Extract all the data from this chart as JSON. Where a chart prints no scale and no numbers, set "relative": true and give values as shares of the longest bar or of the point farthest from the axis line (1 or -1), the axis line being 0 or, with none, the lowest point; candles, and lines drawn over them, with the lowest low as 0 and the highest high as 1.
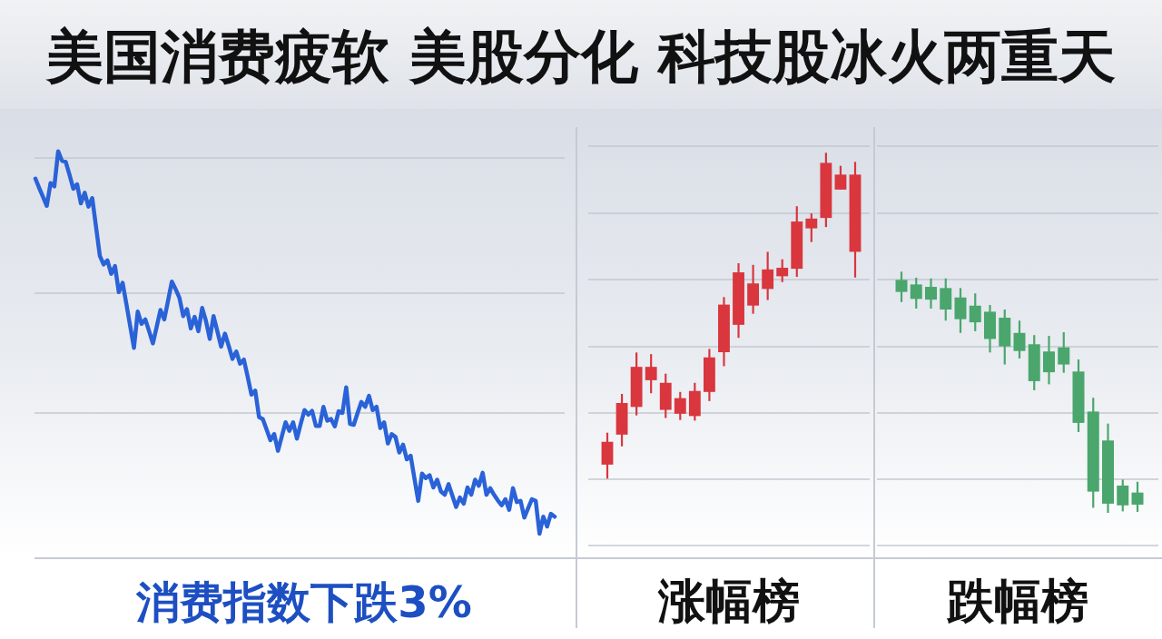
{
  "chart_data": [
    {
      "type": "line",
      "title": "美国消费疲软 美股分化 科技股冰火两重天",
      "xlabel": "消费指数下跌3%",
      "relative": true,
      "grid": "y",
      "categories": [
        null,
        null,
        null,
        null,
        null,
        null,
        null,
        null,
        null,
        null,
        null,
        null,
        null,
        null,
        null,
        null,
        null,
        null,
        null,
        null,
        null,
        null,
        null,
        null,
        null,
        null,
        null,
        null,
        null,
        null,
        null,
        null,
        null,
        null,
        null,
        null,
        null,
        null,
        null,
        null,
        null,
        null,
        null,
        null,
        null,
        null,
        null,
        null,
        null,
        null,
        null,
        null,
        null,
        null,
        null,
        null,
        null,
        null,
        null,
        null,
        null,
        null,
        null,
        null,
        null,
        null,
        null,
        null,
        null,
        null,
        null,
        null,
        null,
        null,
        null,
        null,
        null,
        null,
        null,
        null,
        null,
        null,
        null,
        null,
        null,
        null,
        null,
        null,
        null,
        null,
        null,
        null,
        null,
        null,
        null,
        null,
        null,
        null,
        null,
        null,
        null,
        null,
        null,
        null,
        null,
        null,
        null,
        null,
        null,
        null,
        null,
        null,
        null,
        null,
        null,
        null,
        null,
        null,
        null,
        null,
        null,
        null,
        null,
        null,
        null,
        null,
        null,
        null,
        null,
        null,
        null,
        null,
        null,
        null,
        null,
        null,
        null,
        null
      ],
      "series": [
        {
          "color": "#2a62d8",
          "values": [
            0.933,
            0.91,
            0.888,
            0.866,
            0.922,
            0.914,
            1,
            0.977,
            0.974,
            0.942,
            0.908,
            0.919,
            0.872,
            0.898,
            0.864,
            0.885,
            0.814,
            0.743,
            0.722,
            0.732,
            0.699,
            0.718,
            0.654,
            0.677,
            0.625,
            0.571,
            0.517,
            0.606,
            0.576,
            0.587,
            0.558,
            0.528,
            0.569,
            0.61,
            0.587,
            0.633,
            0.68,
            0.661,
            0.64,
            0.595,
            0.612,
            0.565,
            0.593,
            0.558,
            0.615,
            0.583,
            0.539,
            0.595,
            0.558,
            0.52,
            0.552,
            0.522,
            0.49,
            0.508,
            0.478,
            0.488,
            0.446,
            0.402,
            0.412,
            0.347,
            0.342,
            0.316,
            0.29,
            0.305,
            0.264,
            0.299,
            0.334,
            0.313,
            0.334,
            0.294,
            0.33,
            0.364,
            0.353,
            0.362,
            0.325,
            0.325,
            0.372,
            0.338,
            0.342,
            0.324,
            0.361,
            0.357,
            0.42,
            0.33,
            0.328,
            0.357,
            0.384,
            0.372,
            0.399,
            0.364,
            0.372,
            0.32,
            0.334,
            0.282,
            0.305,
            0.298,
            0.26,
            0.279,
            0.243,
            0.252,
            0.196,
            0.141,
            0.208,
            0.197,
            0.204,
            0.174,
            0.193,
            0.164,
            0.156,
            0.182,
            0.154,
            0.126,
            0.149,
            0.134,
            0.174,
            0.156,
            0.193,
            0.178,
            0.21,
            0.156,
            0.172,
            0.156,
            0.142,
            0.13,
            0.145,
            0.119,
            0.172,
            0.138,
            0.141,
            0.1,
            0.123,
            0.145,
            0.141,
            0.06,
            0.102,
            0.078,
            0.109,
            0.102
          ]
        }
      ]
    },
    {
      "type": "candlestick",
      "xlabel": "涨幅榜",
      "relative": true,
      "grid": "y",
      "color": "#d9363e",
      "categories": [
        null,
        null,
        null,
        null,
        null,
        null,
        null,
        null,
        null,
        null,
        null,
        null,
        null,
        null,
        null,
        null,
        null,
        null
      ],
      "ohlc": [
        [
          0.043,
          0.141,
          0,
          0.113
        ],
        [
          0.135,
          0.26,
          0.099,
          0.232
        ],
        [
          0.22,
          0.387,
          0.194,
          0.343
        ],
        [
          0.302,
          0.382,
          0.262,
          0.343
        ],
        [
          0.211,
          0.322,
          0.186,
          0.294
        ],
        [
          0.199,
          0.266,
          0.18,
          0.247
        ],
        [
          0.192,
          0.294,
          0.178,
          0.269
        ],
        [
          0.266,
          0.398,
          0.238,
          0.372
        ],
        [
          0.388,
          0.557,
          0.345,
          0.534
        ],
        [
          0.472,
          0.661,
          0.432,
          0.633
        ],
        [
          0.531,
          0.656,
          0.506,
          0.599
        ],
        [
          0.582,
          0.696,
          0.548,
          0.642
        ],
        [
          0.621,
          0.673,
          0.603,
          0.647
        ],
        [
          0.644,
          0.836,
          0.619,
          0.789
        ],
        [
          0.768,
          0.814,
          0.726,
          0.798
        ],
        [
          0.8,
          1,
          0.772,
          0.969
        ],
        [
          0.887,
          0.96,
          0.887,
          0.933
        ],
        [
          0.696,
          0.972,
          0.617,
          0.933
        ]
      ]
    },
    {
      "type": "candlestick",
      "xlabel": "跌幅榜",
      "relative": true,
      "grid": "y",
      "color": "#4aa66c",
      "categories": [
        null,
        null,
        null,
        null,
        null,
        null,
        null,
        null,
        null,
        null,
        null,
        null,
        null,
        null,
        null,
        null,
        null
      ],
      "ohlc": [
        [
          0.966,
          1,
          0.874,
          0.916
        ],
        [
          0.947,
          0.975,
          0.847,
          0.887
        ],
        [
          0.937,
          0.972,
          0.847,
          0.884
        ],
        [
          0.932,
          0.972,
          0.797,
          0.843
        ],
        [
          0.893,
          0.932,
          0.746,
          0.803
        ],
        [
          0.859,
          0.91,
          0.753,
          0.79
        ],
        [
          0.834,
          0.862,
          0.665,
          0.721
        ],
        [
          0.809,
          0.843,
          0.615,
          0.69
        ],
        [
          0.746,
          0.797,
          0.64,
          0.671
        ],
        [
          0.699,
          0.737,
          0.508,
          0.546
        ],
        [
          0.669,
          0.734,
          0.533,
          0.583
        ],
        [
          0.686,
          0.749,
          0.581,
          0.615
        ],
        [
          0.586,
          0.636,
          0.335,
          0.373
        ],
        [
          0.42,
          0.477,
          0.021,
          0.088
        ],
        [
          0.3,
          0.37,
          0,
          0.038
        ],
        [
          0.113,
          0.138,
          0.006,
          0.031
        ],
        [
          0.084,
          0.129,
          0.004,
          0.034
        ]
      ]
    }
  ]
}
